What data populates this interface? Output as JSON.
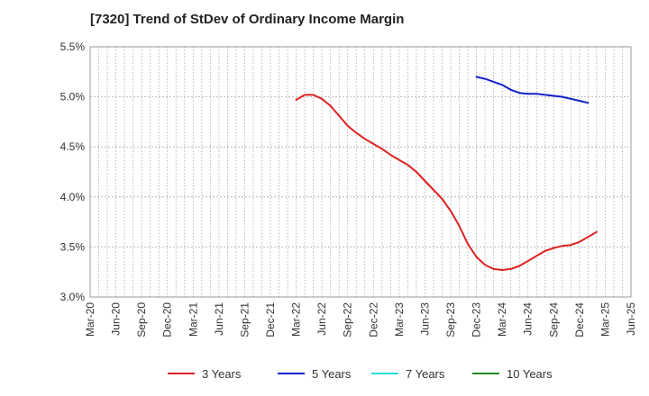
{
  "chart_data": {
    "type": "line",
    "title": "[7320]  Trend of StDev of Ordinary Income Margin",
    "xlabel": "",
    "ylabel": "",
    "x_ticks": [
      "Mar-20",
      "Jun-20",
      "Sep-20",
      "Dec-20",
      "Mar-21",
      "Jun-21",
      "Sep-21",
      "Dec-21",
      "Mar-22",
      "Jun-22",
      "Sep-22",
      "Dec-22",
      "Mar-23",
      "Jun-23",
      "Sep-23",
      "Dec-23",
      "Mar-24",
      "Jun-24",
      "Sep-24",
      "Dec-24",
      "Mar-25",
      "Jun-25"
    ],
    "y_ticks": [
      "3.0%",
      "3.5%",
      "4.0%",
      "4.5%",
      "5.0%",
      "5.5%"
    ],
    "ylim": [
      3.0,
      5.5
    ],
    "grid": true,
    "legend_position": "bottom",
    "series": [
      {
        "name": "3 Years",
        "color": "#dd2222",
        "points": [
          [
            "Mar-22",
            4.97
          ],
          [
            "Apr-22",
            5.02
          ],
          [
            "May-22",
            5.02
          ],
          [
            "Jun-22",
            4.98
          ],
          [
            "Jul-22",
            4.91
          ],
          [
            "Aug-22",
            4.81
          ],
          [
            "Sep-22",
            4.71
          ],
          [
            "Oct-22",
            4.64
          ],
          [
            "Nov-22",
            4.58
          ],
          [
            "Dec-22",
            4.53
          ],
          [
            "Jan-23",
            4.48
          ],
          [
            "Feb-23",
            4.42
          ],
          [
            "Mar-23",
            4.37
          ],
          [
            "Apr-23",
            4.32
          ],
          [
            "May-23",
            4.25
          ],
          [
            "Jun-23",
            4.16
          ],
          [
            "Jul-23",
            4.07
          ],
          [
            "Aug-23",
            3.98
          ],
          [
            "Sep-23",
            3.86
          ],
          [
            "Oct-23",
            3.71
          ],
          [
            "Nov-23",
            3.53
          ],
          [
            "Dec-23",
            3.4
          ],
          [
            "Jan-24",
            3.32
          ],
          [
            "Feb-24",
            3.28
          ],
          [
            "Mar-24",
            3.27
          ],
          [
            "Apr-24",
            3.28
          ],
          [
            "May-24",
            3.31
          ],
          [
            "Jun-24",
            3.36
          ],
          [
            "Jul-24",
            3.41
          ],
          [
            "Aug-24",
            3.46
          ],
          [
            "Sep-24",
            3.49
          ],
          [
            "Oct-24",
            3.51
          ],
          [
            "Nov-24",
            3.52
          ],
          [
            "Dec-24",
            3.55
          ],
          [
            "Jan-25",
            3.6
          ],
          [
            "Feb-25",
            3.65
          ]
        ]
      },
      {
        "name": "5 Years",
        "color": "#1122cc",
        "points": [
          [
            "Dec-23",
            5.2
          ],
          [
            "Jan-24",
            5.18
          ],
          [
            "Feb-24",
            5.15
          ],
          [
            "Mar-24",
            5.12
          ],
          [
            "Apr-24",
            5.07
          ],
          [
            "May-24",
            5.04
          ],
          [
            "Jun-24",
            5.03
          ],
          [
            "Jul-24",
            5.03
          ],
          [
            "Aug-24",
            5.02
          ],
          [
            "Sep-24",
            5.01
          ],
          [
            "Oct-24",
            5.0
          ],
          [
            "Nov-24",
            4.98
          ],
          [
            "Dec-24",
            4.96
          ],
          [
            "Jan-25",
            4.94
          ]
        ]
      },
      {
        "name": "7 Years",
        "color": "#22dddd",
        "points": []
      },
      {
        "name": "10 Years",
        "color": "#228822",
        "points": []
      }
    ]
  }
}
